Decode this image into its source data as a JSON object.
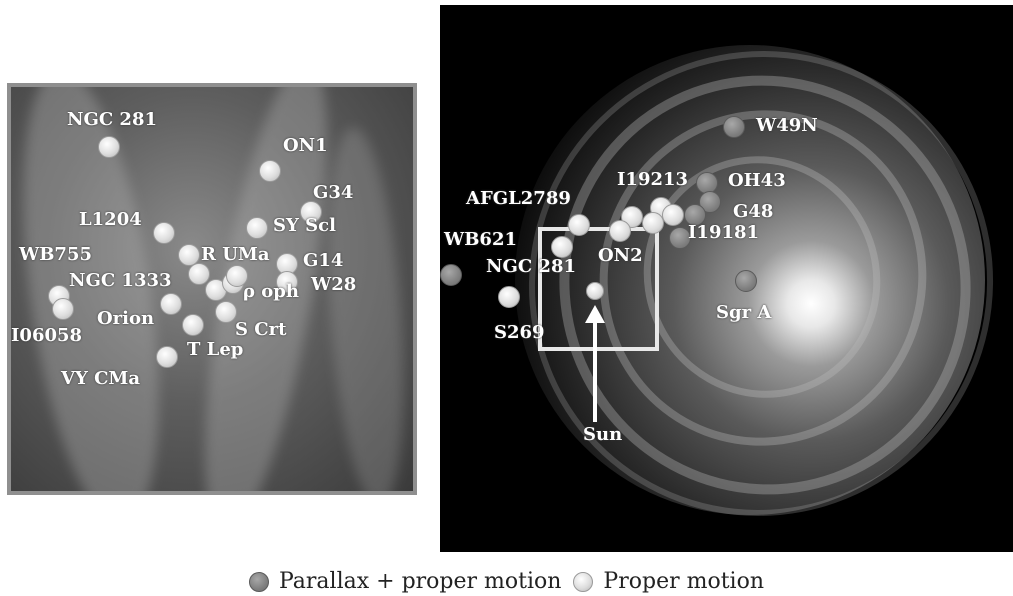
{
  "left_panel": {
    "points": [
      {
        "label": "NGC 281",
        "type": "proper"
      },
      {
        "label": "ON1",
        "type": "proper"
      },
      {
        "label": "G34",
        "type": "proper"
      },
      {
        "label": "L1204",
        "type": "proper"
      },
      {
        "label": "SY Scl",
        "type": "proper"
      },
      {
        "label": "WB755",
        "type": "proper"
      },
      {
        "label": "R UMa",
        "type": "proper"
      },
      {
        "label": "G14",
        "type": "proper"
      },
      {
        "label": "NGC 1333",
        "type": "proper"
      },
      {
        "label": "ρ oph",
        "type": "proper"
      },
      {
        "label": "W28",
        "type": "proper"
      },
      {
        "label": "Orion",
        "type": "proper"
      },
      {
        "label": "I06058",
        "type": "proper"
      },
      {
        "label": "S Crt",
        "type": "proper"
      },
      {
        "label": "T Lep",
        "type": "proper"
      },
      {
        "label": "VY CMa",
        "type": "proper"
      }
    ]
  },
  "right_panel": {
    "points": [
      {
        "label": "W49N",
        "type": "parallax"
      },
      {
        "label": "I19213",
        "type": "proper"
      },
      {
        "label": "OH43",
        "type": "parallax"
      },
      {
        "label": "G48",
        "type": "parallax"
      },
      {
        "label": "AFGL2789",
        "type": "proper"
      },
      {
        "label": "I19181",
        "type": "parallax"
      },
      {
        "label": "WB621",
        "type": "parallax"
      },
      {
        "label": "NGC 281",
        "type": "proper"
      },
      {
        "label": "ON2",
        "type": "proper"
      },
      {
        "label": "Sgr A",
        "type": "parallax"
      },
      {
        "label": "S269",
        "type": "proper"
      },
      {
        "label": "Sun",
        "type": "proper"
      }
    ]
  },
  "legend": {
    "parallax_label": "Parallax + proper motion",
    "proper_label": "Proper motion"
  },
  "colors": {
    "parallax_dot": "#808080",
    "proper_dot": "#e0e0e0"
  }
}
